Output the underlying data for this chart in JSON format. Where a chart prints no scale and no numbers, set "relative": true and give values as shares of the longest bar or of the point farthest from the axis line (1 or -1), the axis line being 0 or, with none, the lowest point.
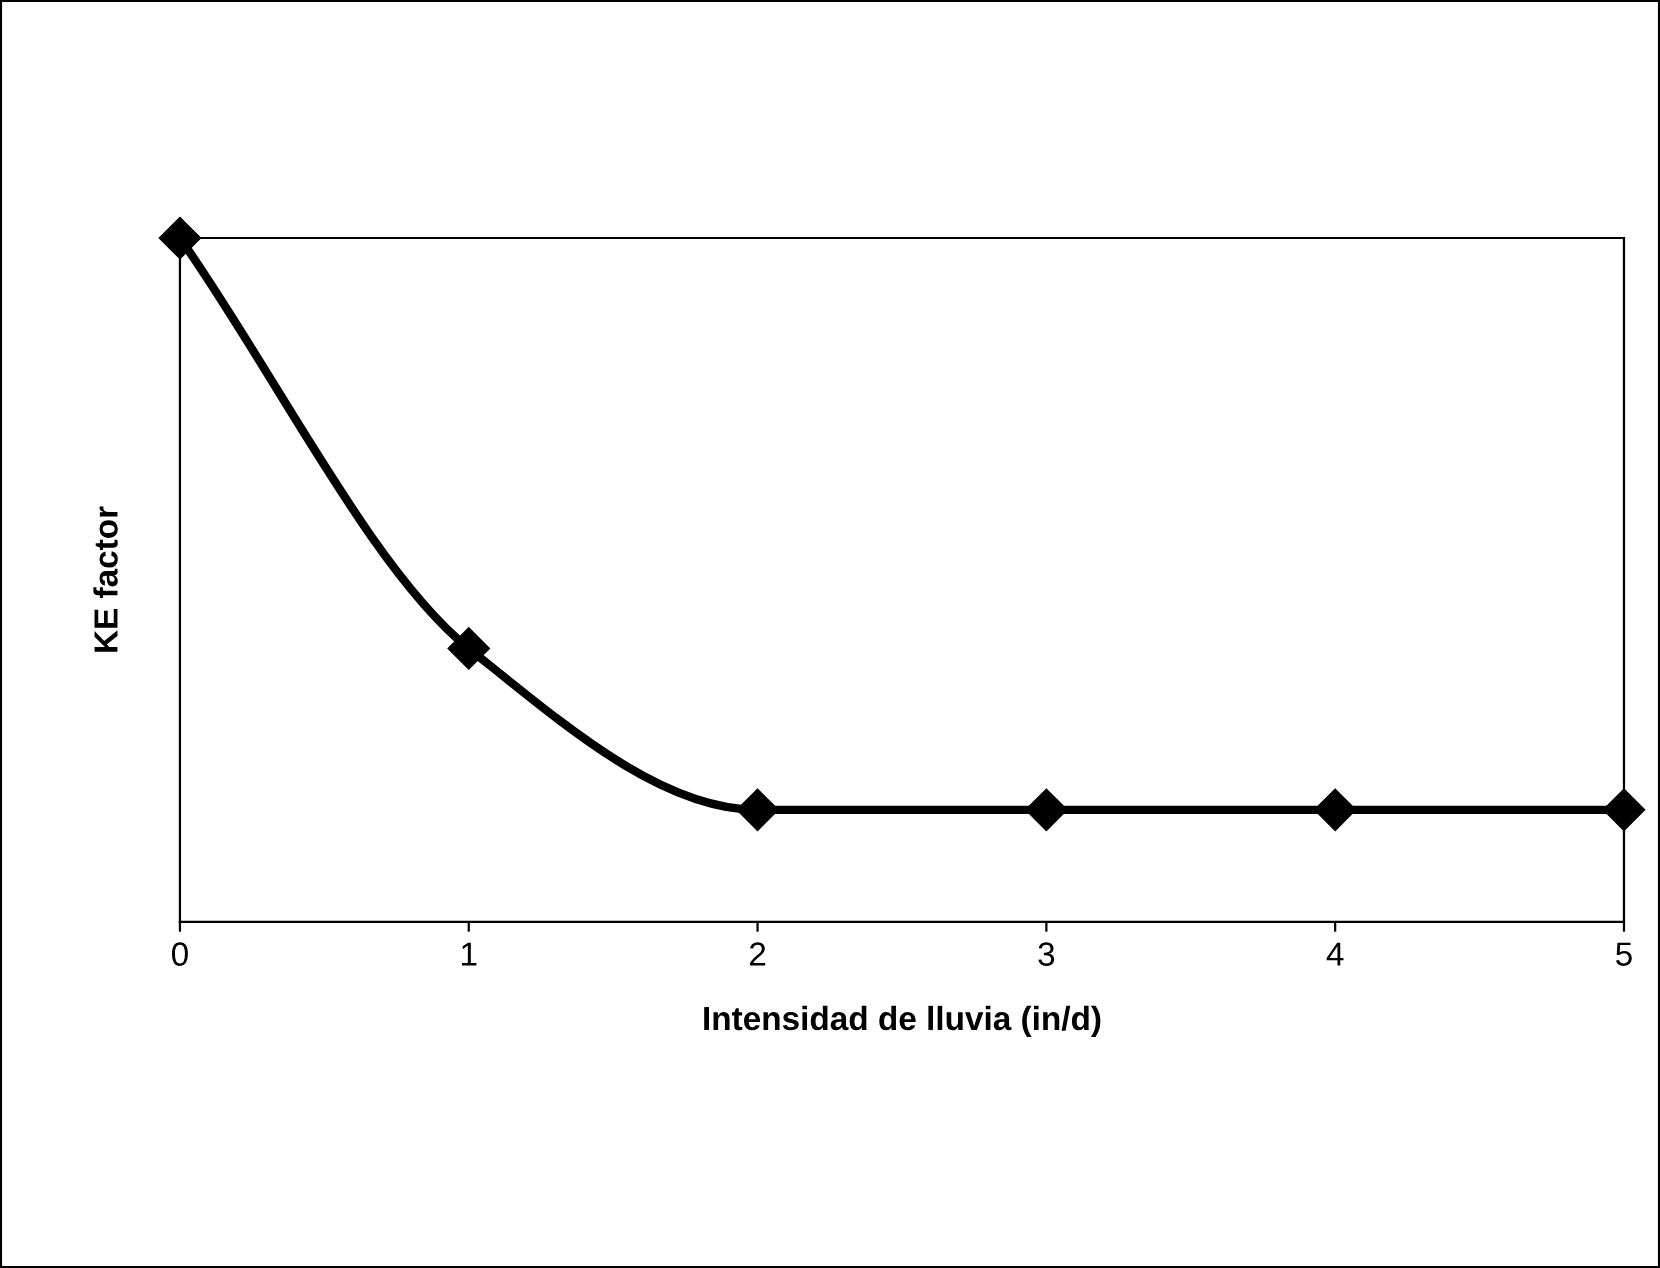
{
  "chart_data": {
    "type": "line",
    "xlabel": "Intensidad de lluvia (in/d)",
    "ylabel": "KE factor",
    "relative": true,
    "x": [
      0,
      1,
      2,
      3,
      4,
      5
    ],
    "series": [
      {
        "color": "#000000",
        "values": [
          1,
          0.4,
          0.164,
          0.164,
          0.164,
          0.164
        ]
      }
    ],
    "xlim": [
      0,
      5
    ],
    "xticks": [
      0,
      1,
      2,
      3,
      4,
      5
    ],
    "marker": "diamond",
    "line_style": "solid",
    "grid": false,
    "legend": false
  }
}
